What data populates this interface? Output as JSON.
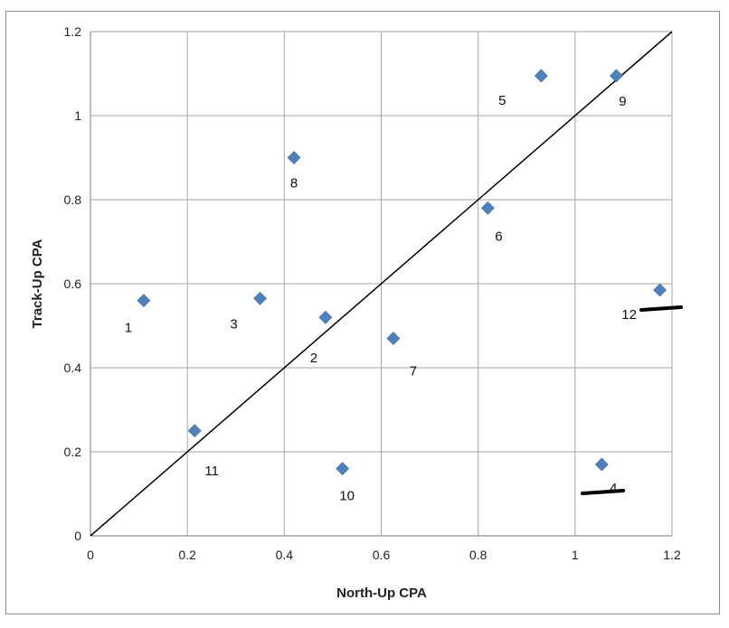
{
  "chart_data": {
    "type": "scatter",
    "xlabel": "North-Up CPA",
    "ylabel": "Track-Up CPA",
    "xlim": [
      0,
      1.2
    ],
    "ylim": [
      0,
      1.2
    ],
    "x_ticks": [
      "0",
      "0.2",
      "0.4",
      "0.6",
      "0.8",
      "1",
      "1.2"
    ],
    "y_ticks": [
      "0",
      "0.2",
      "0.4",
      "0.6",
      "0.8",
      "1",
      "1.2"
    ],
    "grid": true,
    "marker_color": "#4f81bd",
    "reference_line": {
      "from": [
        0,
        0
      ],
      "to": [
        1.2,
        1.2
      ],
      "color": "#000000"
    },
    "points": [
      {
        "label": "1",
        "x": 0.11,
        "y": 0.56
      },
      {
        "label": "2",
        "x": 0.485,
        "y": 0.52
      },
      {
        "label": "3",
        "x": 0.35,
        "y": 0.565
      },
      {
        "label": "4",
        "x": 1.055,
        "y": 0.17
      },
      {
        "label": "5",
        "x": 0.93,
        "y": 1.095
      },
      {
        "label": "6",
        "x": 0.82,
        "y": 0.78
      },
      {
        "label": "7",
        "x": 0.625,
        "y": 0.47
      },
      {
        "label": "8",
        "x": 0.42,
        "y": 0.9
      },
      {
        "label": "9",
        "x": 1.085,
        "y": 1.095
      },
      {
        "label": "10",
        "x": 0.52,
        "y": 0.16
      },
      {
        "label": "11",
        "x": 0.215,
        "y": 0.25
      },
      {
        "label": "12",
        "x": 1.175,
        "y": 0.585
      }
    ]
  }
}
